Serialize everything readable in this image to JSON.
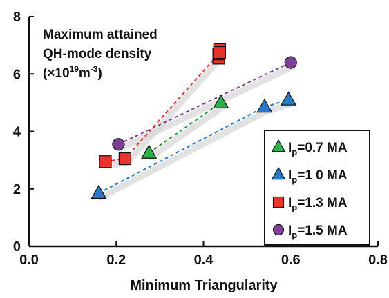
{
  "chart_data": {
    "type": "scatter",
    "title": "",
    "xlabel": "Minimum Triangularity",
    "ylabel": "",
    "xlim": [
      0,
      0.8
    ],
    "ylim": [
      0,
      8
    ],
    "xticks": [
      "0.0",
      "0.2",
      "0.4",
      "0.6",
      "0.8"
    ],
    "yticks": [
      "0",
      "2",
      "4",
      "6",
      "8"
    ],
    "grid": false,
    "legend_position": "bottom-right",
    "annotation": {
      "line1": "Maximum attained",
      "line2": "QH-mode density",
      "line3_prefix": "(×10",
      "line3_exp1": "19",
      "line3_mid": "m",
      "line3_exp2": "-3",
      "line3_suffix": ")"
    },
    "series": [
      {
        "name_main": "I",
        "name_sub": "p",
        "name_rest": "=0.7 MA",
        "marker": "triangle",
        "color": "#2db04b",
        "line_color": "#2a9a3c",
        "x": [
          0.275,
          0.44
        ],
        "y": [
          3.25,
          5.0
        ]
      },
      {
        "name_main": "I",
        "name_sub": "p",
        "name_rest": "=1 0 MA",
        "marker": "triangle",
        "color": "#2a78c8",
        "line_color": "#2a78c8",
        "x": [
          0.16,
          0.54,
          0.595
        ],
        "y": [
          1.85,
          4.85,
          5.1
        ]
      },
      {
        "name_main": "I",
        "name_sub": "p",
        "name_rest": "=1.3 MA",
        "marker": "square",
        "color": "#e8342c",
        "line_color": "#e8342c",
        "x": [
          0.175,
          0.22,
          0.435,
          0.435,
          0.437,
          0.437
        ],
        "y": [
          2.95,
          3.05,
          6.55,
          6.7,
          6.85,
          6.75
        ]
      },
      {
        "name_main": "I",
        "name_sub": "p",
        "name_rest": "=1.5 MA",
        "marker": "circle",
        "color": "#7e3f98",
        "line_color": "#7e3f98",
        "x": [
          0.205,
          0.6
        ],
        "y": [
          3.55,
          6.4
        ]
      }
    ]
  }
}
